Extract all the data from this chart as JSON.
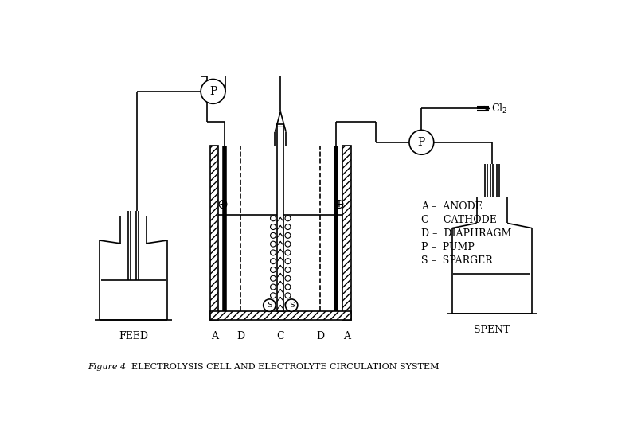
{
  "bg_color": "#ffffff",
  "line_color": "#000000",
  "title_italic": "Figure 4",
  "title_main": "ELECTROLYSIS CELL AND ELECTROLYTE CIRCULATION SYSTEM",
  "legend": [
    "A –  ANODE",
    "C –  CATHODE",
    "D –  DIAPHRAGM",
    "P –  PUMP",
    "S –  SPARGER"
  ]
}
